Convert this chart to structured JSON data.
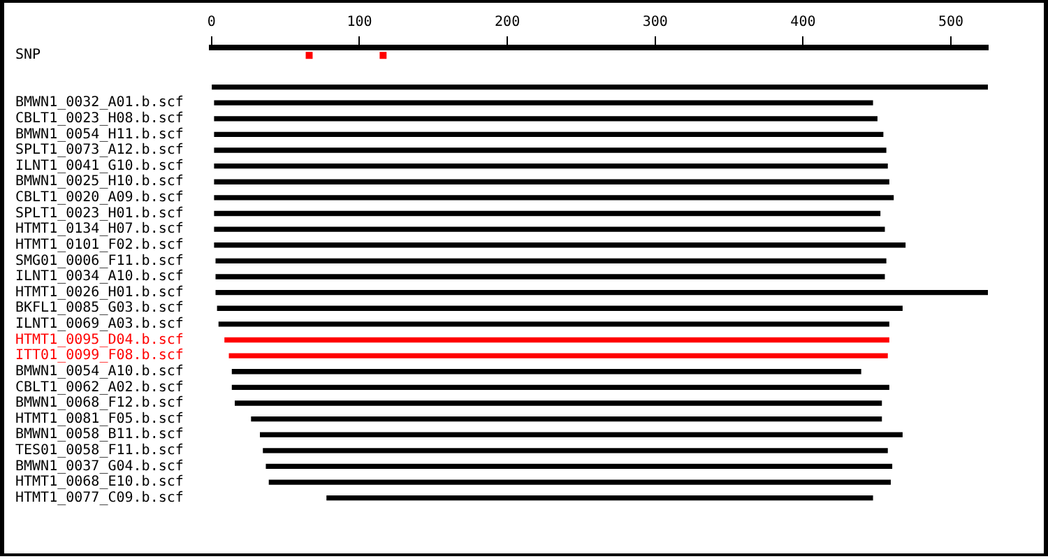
{
  "chart_data": {
    "type": "bar",
    "orientation": "horizontal",
    "grid": false,
    "marker": "square",
    "categories": [
      "SNP",
      null,
      null,
      "BMWN1_0032_A01.b.scf",
      "CBLT1_0023_H08.b.scf",
      "BMWN1_0054_H11.b.scf",
      "SPLT1_0073_A12.b.scf",
      "ILNT1_0041_G10.b.scf",
      "BMWN1_0025_H10.b.scf",
      "CBLT1_0020_A09.b.scf",
      "SPLT1_0023_H01.b.scf",
      "HTMT1_0134_H07.b.scf",
      "HTMT1_0101_F02.b.scf",
      "SMG01_0006_F11.b.scf",
      "ILNT1_0034_A10.b.scf",
      "HTMT1_0026_H01.b.scf",
      "BKFL1_0085_G03.b.scf",
      "ILNT1_0069_A03.b.scf",
      "HTMT1_0095_D04.b.scf",
      "ITT01_0099_F08.b.scf",
      "BMWN1_0054_A10.b.scf",
      "CBLT1_0062_A02.b.scf",
      "BMWN1_0068_F12.b.scf",
      "HTMT1_0081_F05.b.scf",
      "BMWN1_0058_B11.b.scf",
      "TES01_0058_F11.b.scf",
      "BMWN1_0037_G04.b.scf",
      "HTMT1_0068_E10.b.scf",
      "HTMT1_0077_C09.b.scf"
    ],
    "series": [
      {
        "base": [
          null,
          null,
          0,
          2,
          2,
          2,
          2,
          2,
          2,
          2,
          2,
          2,
          2,
          3,
          3,
          3,
          4,
          5,
          9,
          12,
          14,
          14,
          16,
          27,
          33,
          35,
          37,
          39,
          78
        ],
        "values": [
          null,
          null,
          525,
          445,
          448,
          452,
          454,
          455,
          456,
          459,
          450,
          453,
          467,
          453,
          452,
          522,
          463,
          453,
          449,
          445,
          425,
          444,
          437,
          426,
          434,
          422,
          423,
          420,
          369
        ],
        "colors": [
          "#000000",
          "#000000",
          "#000000",
          "#000000",
          "#000000",
          "#000000",
          "#000000",
          "#000000",
          "#000000",
          "#000000",
          "#000000",
          "#000000",
          "#000000",
          "#000000",
          "#000000",
          "#000000",
          "#000000",
          "#000000",
          "#ff0000",
          "#ff0000",
          "#000000",
          "#000000",
          "#000000",
          "#000000",
          "#000000",
          "#000000",
          "#000000",
          "#000000",
          "#000000"
        ]
      },
      {
        "type": "scatter",
        "color": "#ff0000",
        "values": [
          66,
          null,
          null,
          null,
          null,
          null,
          null,
          null,
          null,
          null,
          null,
          null,
          null,
          null,
          null,
          null,
          null,
          null,
          null,
          null,
          null,
          null,
          null,
          null,
          null,
          null,
          null,
          null,
          null
        ]
      },
      {
        "type": "scatter",
        "color": "#ff0000",
        "values": [
          116,
          null,
          null,
          null,
          null,
          null,
          null,
          null,
          null,
          null,
          null,
          null,
          null,
          null,
          null,
          null,
          null,
          null,
          null,
          null,
          null,
          null,
          null,
          null,
          null,
          null,
          null,
          null,
          null
        ]
      }
    ],
    "xlim": [
      0,
      525
    ],
    "xticks": [
      0,
      100,
      200,
      300,
      400,
      500
    ]
  }
}
